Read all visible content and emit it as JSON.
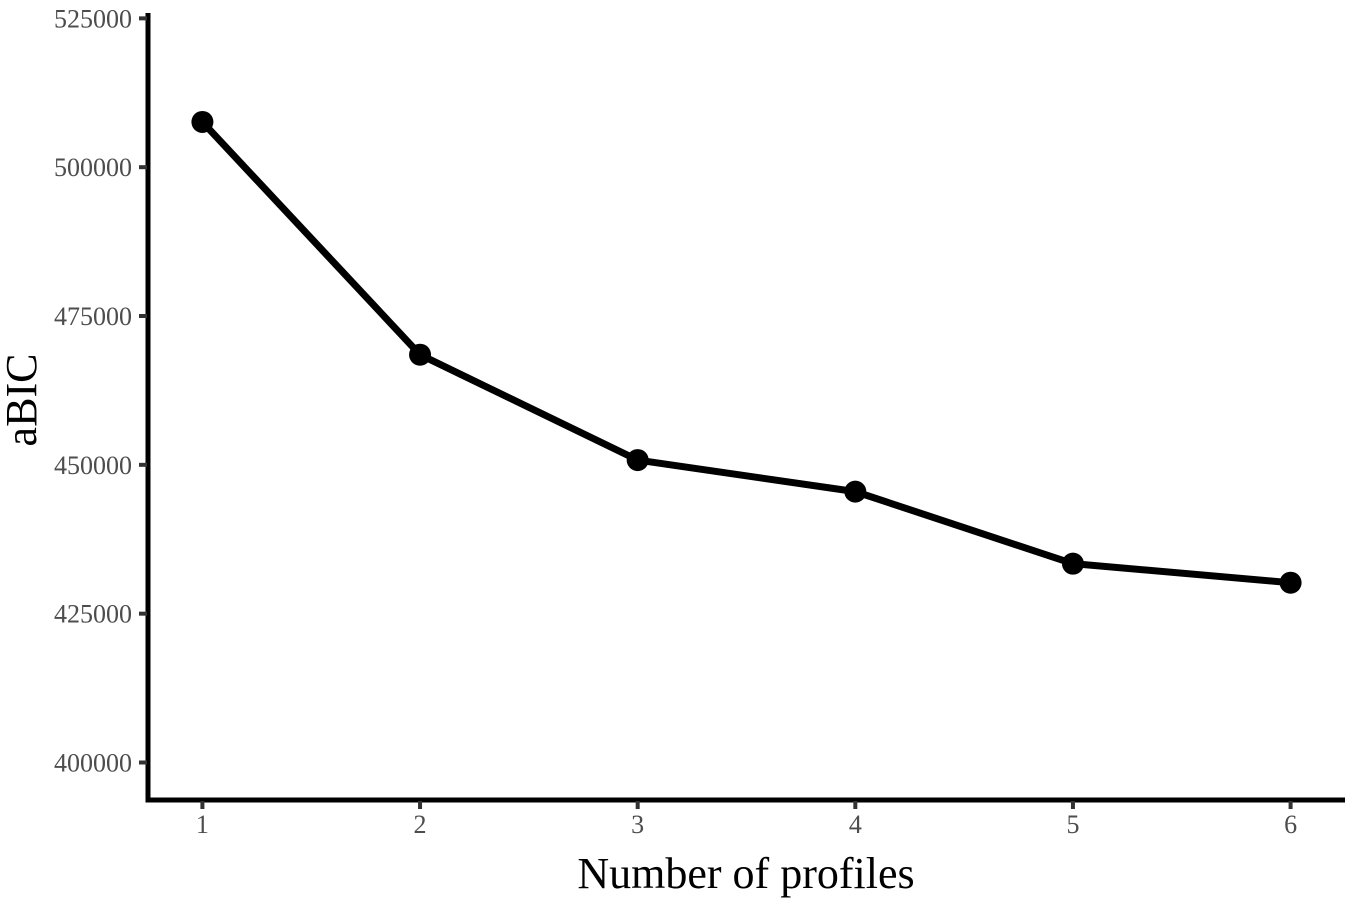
{
  "figure": {
    "background_color": "#ffffff",
    "line_color": "#000000",
    "point_color": "#000000",
    "axis_color": "#000000",
    "tick_color": "#333333",
    "tick_label_color": "#4d4d4d"
  },
  "chart_data": {
    "type": "line",
    "title": "",
    "xlabel": "Number of profiles",
    "ylabel": "aBIC",
    "x": [
      1,
      2,
      3,
      4,
      5,
      6
    ],
    "series": [
      {
        "name": "aBIC",
        "values": [
          507600,
          468500,
          450800,
          445500,
          433400,
          430200
        ]
      }
    ],
    "xticks": [
      1,
      2,
      3,
      4,
      5,
      6
    ],
    "xtick_labels": [
      "1",
      "2",
      "3",
      "4",
      "5",
      "6"
    ],
    "yticks": [
      400000,
      425000,
      450000,
      475000,
      500000,
      525000
    ],
    "ytick_labels": [
      "400000",
      "425000",
      "450000",
      "475000",
      "500000",
      "525000"
    ],
    "xlim": [
      0.75,
      6.25
    ],
    "ylim": [
      393700,
      525900
    ],
    "grid": false,
    "legend": false,
    "marker": "circle",
    "line_width": 7,
    "marker_radius": 11
  }
}
